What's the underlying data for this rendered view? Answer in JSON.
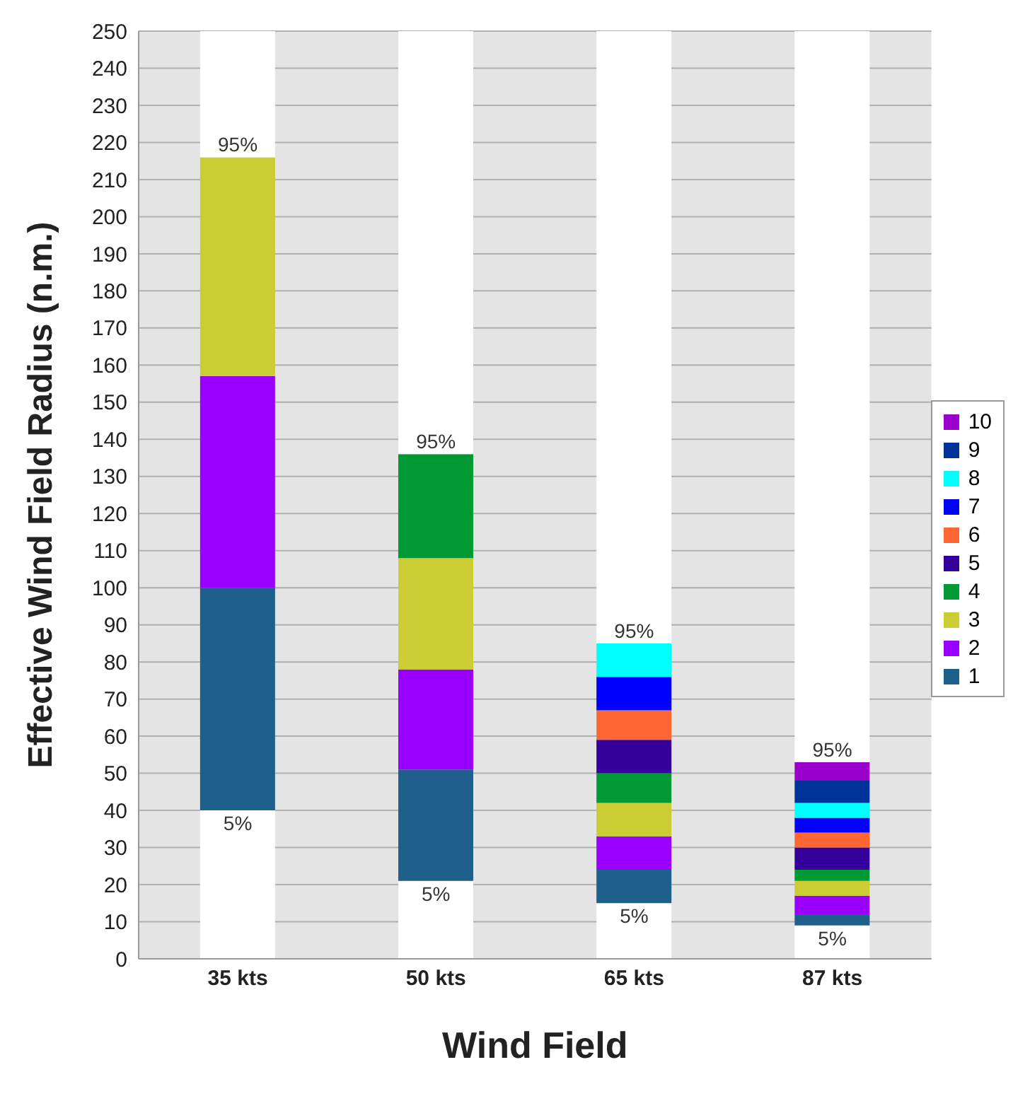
{
  "chart_data": {
    "type": "bar",
    "stacked": true,
    "xlabel": "Wind Field",
    "ylabel": "Effective Wind Field Radius (n.m.)",
    "categories": [
      "35 kts",
      "50 kts",
      "65 kts",
      "87 kts"
    ],
    "series": [
      {
        "color": "#ffffff",
        "values": [
          40,
          21,
          15,
          9
        ]
      },
      {
        "name": "1",
        "color": "#1f5f8b",
        "values": [
          60,
          30,
          9,
          3
        ]
      },
      {
        "name": "2",
        "color": "#9900ff",
        "values": [
          57,
          27,
          9,
          5
        ]
      },
      {
        "name": "3",
        "color": "#cccc33",
        "values": [
          59,
          30,
          9,
          4
        ]
      },
      {
        "name": "4",
        "color": "#009933",
        "values": [
          null,
          28,
          8,
          3
        ]
      },
      {
        "name": "5",
        "color": "#330099",
        "values": [
          null,
          null,
          9,
          6
        ]
      },
      {
        "name": "6",
        "color": "#ff6633",
        "values": [
          null,
          null,
          8,
          4
        ]
      },
      {
        "name": "7",
        "color": "#0000ff",
        "values": [
          null,
          null,
          9,
          4
        ]
      },
      {
        "name": "8",
        "color": "#00ffff",
        "values": [
          null,
          null,
          9,
          4
        ]
      },
      {
        "name": "9",
        "color": "#003399",
        "values": [
          null,
          null,
          null,
          6
        ]
      },
      {
        "name": "10",
        "color": "#9900cc",
        "values": [
          null,
          null,
          null,
          5
        ]
      },
      {
        "color": "#ffffff",
        "values": [
          34,
          114,
          165,
          197
        ]
      }
    ],
    "ylim": [
      0,
      250
    ],
    "yticks": [
      0,
      10,
      20,
      30,
      40,
      50,
      60,
      70,
      80,
      90,
      100,
      110,
      120,
      130,
      140,
      150,
      160,
      170,
      180,
      190,
      200,
      210,
      220,
      230,
      240,
      250
    ],
    "grid": "y",
    "legend": "right",
    "annotations": [
      {
        "text": "95%",
        "x": "35 kts",
        "y": 216
      },
      {
        "text": "5%",
        "x": "35 kts",
        "y": 40
      },
      {
        "text": "95%",
        "x": "50 kts",
        "y": 136
      },
      {
        "text": "5%",
        "x": "50 kts",
        "y": 21
      },
      {
        "text": "95%",
        "x": "65 kts",
        "y": 85
      },
      {
        "text": "5%",
        "x": "65 kts",
        "y": 15
      },
      {
        "text": "95%",
        "x": "87 kts",
        "y": 53
      },
      {
        "text": "5%",
        "x": "87 kts",
        "y": 9
      }
    ]
  }
}
